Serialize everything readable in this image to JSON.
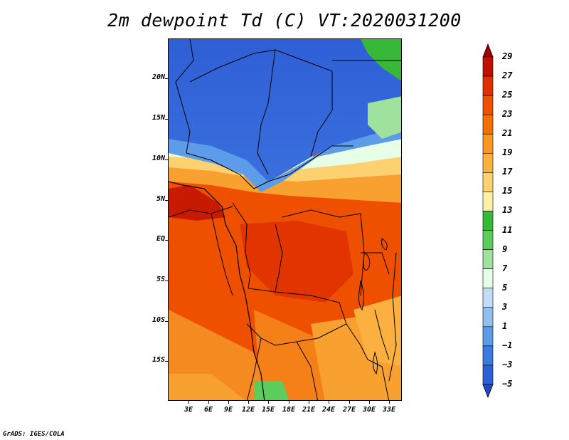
{
  "title": "2m dewpoint Td (C) VT:2020031200",
  "footer": "GrADS: IGES/COLA",
  "map": {
    "lat_labels": [
      "20N",
      "15N",
      "10N",
      "5N",
      "EQ",
      "5S",
      "10S",
      "15S"
    ],
    "lon_labels": [
      "3E",
      "6E",
      "9E",
      "12E",
      "15E",
      "18E",
      "21E",
      "24E",
      "27E",
      "30E",
      "33E"
    ]
  },
  "colorbar": {
    "labels": [
      "29",
      "27",
      "25",
      "23",
      "21",
      "19",
      "17",
      "15",
      "13",
      "11",
      "9",
      "7",
      "5",
      "3",
      "1",
      "−1",
      "−3",
      "−5"
    ],
    "colors": [
      "#a00000",
      "#c01000",
      "#e03000",
      "#ee5000",
      "#f47000",
      "#f89820",
      "#fbb040",
      "#fdd070",
      "#fff0a8",
      "#38b838",
      "#5ccc5c",
      "#9ee29e",
      "#e6ffe6",
      "#c0dcf6",
      "#90c0ee",
      "#5c9ce8",
      "#3c7ce0",
      "#2c60d8",
      "#1e48c8"
    ]
  }
}
